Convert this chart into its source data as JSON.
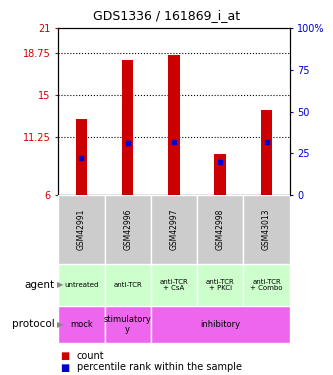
{
  "title": "GDS1336 / 161869_i_at",
  "samples": [
    "GSM42991",
    "GSM42996",
    "GSM42997",
    "GSM42998",
    "GSM43013"
  ],
  "bar_bottoms": [
    6,
    6,
    6,
    6,
    6
  ],
  "bar_tops": [
    12.8,
    18.15,
    18.55,
    9.7,
    13.65
  ],
  "percentile_values": [
    9.3,
    10.7,
    10.8,
    9.0,
    10.75
  ],
  "bar_color": "#cc0000",
  "percentile_color": "#0000cc",
  "ylim_left": [
    6,
    21
  ],
  "ylim_right": [
    0,
    100
  ],
  "yticks_left": [
    6,
    11.25,
    15,
    18.75,
    21
  ],
  "ytick_labels_left": [
    "6",
    "11.25",
    "15",
    "18.75",
    "21"
  ],
  "yticks_right_vals": [
    0,
    25,
    50,
    75,
    100
  ],
  "ytick_labels_right": [
    "0",
    "25",
    "50",
    "75",
    "100%"
  ],
  "hlines": [
    11.25,
    15,
    18.75
  ],
  "agent_labels": [
    "untreated",
    "anti-TCR",
    "anti-TCR\n+ CsA",
    "anti-TCR\n+ PKCi",
    "anti-TCR\n+ Combo"
  ],
  "agent_bg_color": "#ccffcc",
  "protocol_spans": [
    1,
    1,
    3
  ],
  "protocol_starts": [
    0,
    1,
    2
  ],
  "protocol_texts": [
    "mock",
    "stimulatory\ny",
    "inhibitory"
  ],
  "protocol_bg_color": "#ee66ee",
  "sample_bg_color": "#cccccc",
  "bar_width": 0.25,
  "left_label_color": "#cc0000",
  "right_label_color": "#0000cc",
  "legend_count_color": "#cc0000",
  "legend_percentile_color": "#0000cc"
}
